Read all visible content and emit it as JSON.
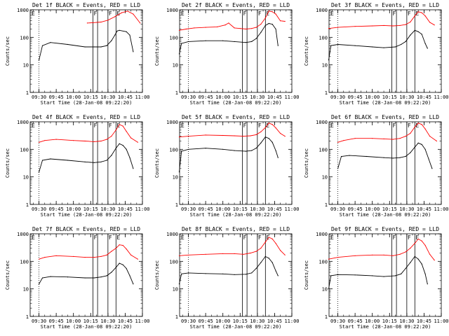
{
  "chart_data": [
    {
      "type": "line",
      "title": "Det 1f BLACK = Events, RED = LLD",
      "xlabel": "Start Time (28-Jan-08 09:22:20)",
      "ylabel": "Counts/sec",
      "yscale": "log",
      "ylim": [
        1,
        1000
      ],
      "y_ticks": [
        "1",
        "10",
        "100",
        "1000"
      ],
      "x_ticks": [
        "09:30",
        "09:45",
        "10:00",
        "10:15",
        "10:30",
        "10:45",
        "11:00"
      ],
      "xlim": [
        "09:22:20",
        "11:00"
      ],
      "flag_labels": [
        "E",
        "F",
        "F",
        "E"
      ],
      "series": [
        {
          "color": "#ff0000",
          "x": [
            "10:12",
            "10:17",
            "10:24",
            "10:30",
            "10:36",
            "10:42",
            "10:47",
            "10:52",
            "10:58"
          ],
          "y": [
            330,
            340,
            360,
            420,
            560,
            780,
            900,
            700,
            330
          ]
        },
        {
          "color": "#000000",
          "x": [
            "09:30",
            "09:33",
            "09:40",
            "09:55",
            "10:10",
            "10:18",
            "10:24",
            "10:29",
            "10:33",
            "10:36",
            "10:38",
            "10:40",
            "10:46",
            "10:49",
            "10:52"
          ],
          "y": [
            15,
            50,
            65,
            55,
            45,
            45,
            45,
            50,
            75,
            120,
            170,
            180,
            160,
            120,
            30
          ]
        }
      ]
    },
    {
      "type": "line",
      "title": "Det 2f BLACK = Events, RED = LLD",
      "xlabel": "Start Time (28-Jan-08 09:22:20)",
      "ylabel": "Counts/sec",
      "yscale": "log",
      "ylim": [
        1,
        1000
      ],
      "y_ticks": [
        "1",
        "10",
        "100",
        "1000"
      ],
      "x_ticks": [
        "09:30",
        "09:45",
        "10:00",
        "10:15",
        "10:30",
        "10:45",
        "11:00"
      ],
      "xlim": [
        "09:22:20",
        "11:00"
      ],
      "flag_labels": [
        "E",
        "F",
        "F",
        "E"
      ],
      "series": [
        {
          "color": "#ff0000",
          "x": [
            "09:22",
            "09:28",
            "09:35",
            "09:45",
            "09:55",
            "10:02",
            "10:05",
            "10:10",
            "10:15",
            "10:20",
            "10:25",
            "10:29",
            "10:33",
            "10:37",
            "10:40",
            "10:43",
            "10:46",
            "10:50",
            "10:54"
          ],
          "y": [
            180,
            200,
            220,
            230,
            240,
            280,
            330,
            220,
            210,
            200,
            210,
            230,
            300,
            500,
            900,
            850,
            700,
            400,
            380
          ]
        },
        {
          "color": "#000000",
          "x": [
            "09:22",
            "09:24",
            "09:30",
            "09:45",
            "10:00",
            "10:10",
            "10:20",
            "10:25",
            "10:29",
            "10:33",
            "10:37",
            "10:40",
            "10:43",
            "10:46",
            "10:48"
          ],
          "y": [
            25,
            60,
            70,
            75,
            75,
            70,
            65,
            70,
            90,
            150,
            270,
            320,
            300,
            200,
            50
          ]
        }
      ]
    },
    {
      "type": "line",
      "title": "Det 3f BLACK = Events, RED = LLD",
      "xlabel": "Start Time (28-Jan-08 09:22:20)",
      "ylabel": "Counts/sec",
      "yscale": "log",
      "ylim": [
        1,
        1000
      ],
      "y_ticks": [
        "1",
        "10",
        "100",
        "1000"
      ],
      "x_ticks": [
        "09:30",
        "09:45",
        "10:00",
        "10:15",
        "10:30",
        "10:45",
        "11:00"
      ],
      "xlim": [
        "09:22:20",
        "11:00"
      ],
      "flag_labels": [
        "E",
        "F",
        "F",
        "E"
      ],
      "series": [
        {
          "color": "#ff0000",
          "x": [
            "09:22",
            "09:30",
            "09:45",
            "10:00",
            "10:10",
            "10:18",
            "10:24",
            "10:29",
            "10:33",
            "10:37",
            "10:40",
            "10:43",
            "10:46",
            "10:50",
            "10:54"
          ],
          "y": [
            210,
            230,
            250,
            260,
            270,
            260,
            270,
            290,
            360,
            600,
            850,
            780,
            600,
            350,
            280
          ]
        },
        {
          "color": "#000000",
          "x": [
            "09:22",
            "09:24",
            "09:30",
            "09:45",
            "10:00",
            "10:10",
            "10:20",
            "10:25",
            "10:29",
            "10:33",
            "10:37",
            "10:40",
            "10:43",
            "10:46",
            "10:48"
          ],
          "y": [
            15,
            50,
            55,
            50,
            45,
            42,
            45,
            55,
            70,
            120,
            180,
            160,
            130,
            60,
            40
          ]
        }
      ]
    },
    {
      "type": "line",
      "title": "Det 4f BLACK = Events, RED = LLD",
      "xlabel": "Start Time (28-Jan-08 09:22:20)",
      "ylabel": "Counts/sec",
      "yscale": "log",
      "ylim": [
        1,
        1000
      ],
      "y_ticks": [
        "1",
        "10",
        "100",
        "1000"
      ],
      "x_ticks": [
        "09:30",
        "09:45",
        "10:00",
        "10:15",
        "10:30",
        "10:45",
        "11:00"
      ],
      "xlim": [
        "09:22:20",
        "11:00"
      ],
      "flag_labels": [
        "E",
        "F",
        "F",
        "E"
      ],
      "series": [
        {
          "color": "#ff0000",
          "x": [
            "09:30",
            "09:35",
            "09:45",
            "10:00",
            "10:10",
            "10:18",
            "10:24",
            "10:29",
            "10:33",
            "10:37",
            "10:40",
            "10:43",
            "10:46",
            "10:50",
            "10:56"
          ],
          "y": [
            180,
            210,
            230,
            210,
            200,
            190,
            200,
            230,
            300,
            500,
            800,
            700,
            450,
            260,
            180
          ]
        },
        {
          "color": "#000000",
          "x": [
            "09:30",
            "09:33",
            "09:40",
            "09:55",
            "10:10",
            "10:18",
            "10:24",
            "10:29",
            "10:33",
            "10:37",
            "10:40",
            "10:43",
            "10:46",
            "10:49",
            "10:52"
          ],
          "y": [
            15,
            40,
            45,
            40,
            35,
            33,
            35,
            40,
            60,
            110,
            160,
            140,
            100,
            50,
            20
          ]
        }
      ]
    },
    {
      "type": "line",
      "title": "Det 5f BLACK = Events, RED = LLD",
      "xlabel": "Start Time (28-Jan-08 09:22:20)",
      "ylabel": "Counts/sec",
      "yscale": "log",
      "ylim": [
        1,
        1000
      ],
      "y_ticks": [
        "1",
        "10",
        "100",
        "1000"
      ],
      "x_ticks": [
        "09:30",
        "09:45",
        "10:00",
        "10:15",
        "10:30",
        "10:45",
        "11:00"
      ],
      "xlim": [
        "09:22:20",
        "11:00"
      ],
      "flag_labels": [
        "E",
        "F",
        "F",
        "E"
      ],
      "series": [
        {
          "color": "#ff0000",
          "x": [
            "09:22",
            "09:30",
            "09:45",
            "10:00",
            "10:10",
            "10:18",
            "10:24",
            "10:29",
            "10:33",
            "10:37",
            "10:40",
            "10:43",
            "10:46",
            "10:50",
            "10:54"
          ],
          "y": [
            280,
            300,
            330,
            320,
            310,
            300,
            310,
            340,
            430,
            620,
            900,
            800,
            600,
            380,
            300
          ]
        },
        {
          "color": "#000000",
          "x": [
            "09:22",
            "09:24",
            "09:30",
            "09:45",
            "10:00",
            "10:10",
            "10:20",
            "10:25",
            "10:29",
            "10:33",
            "10:37",
            "10:40",
            "10:43",
            "10:46",
            "10:48"
          ],
          "y": [
            15,
            85,
            100,
            110,
            100,
            90,
            85,
            90,
            110,
            170,
            280,
            250,
            180,
            90,
            50
          ]
        }
      ]
    },
    {
      "type": "line",
      "title": "Det 6f BLACK = Events, RED = LLD",
      "xlabel": "Start Time (28-Jan-08 09:22:20)",
      "ylabel": "Counts/sec",
      "yscale": "log",
      "ylim": [
        1,
        1000
      ],
      "y_ticks": [
        "1",
        "10",
        "100",
        "1000"
      ],
      "x_ticks": [
        "09:30",
        "09:45",
        "10:00",
        "10:15",
        "10:30",
        "10:45",
        "11:00"
      ],
      "xlim": [
        "09:22:20",
        "11:00"
      ],
      "flag_labels": [
        "E",
        "F",
        "F",
        "E"
      ],
      "series": [
        {
          "color": "#ff0000",
          "x": [
            "09:30",
            "09:35",
            "09:45",
            "10:00",
            "10:10",
            "10:18",
            "10:24",
            "10:29",
            "10:33",
            "10:37",
            "10:40",
            "10:43",
            "10:46",
            "10:50",
            "10:56"
          ],
          "y": [
            180,
            210,
            250,
            250,
            240,
            230,
            250,
            300,
            380,
            650,
            900,
            800,
            550,
            300,
            200
          ]
        },
        {
          "color": "#000000",
          "x": [
            "09:30",
            "09:33",
            "09:40",
            "09:55",
            "10:10",
            "10:18",
            "10:24",
            "10:29",
            "10:33",
            "10:37",
            "10:40",
            "10:43",
            "10:46",
            "10:49",
            "10:52"
          ],
          "y": [
            20,
            55,
            60,
            55,
            50,
            48,
            50,
            55,
            75,
            120,
            170,
            150,
            100,
            45,
            20
          ]
        }
      ]
    },
    {
      "type": "line",
      "title": "Det 7f BLACK = Events, RED = LLD",
      "xlabel": "Start Time (28-Jan-08 09:22:20)",
      "ylabel": "Counts/sec",
      "yscale": "log",
      "ylim": [
        1,
        1000
      ],
      "y_ticks": [
        "1",
        "10",
        "100",
        "1000"
      ],
      "x_ticks": [
        "09:30",
        "09:45",
        "10:00",
        "10:15",
        "10:30",
        "10:45",
        "11:00"
      ],
      "xlim": [
        "09:22:20",
        "11:00"
      ],
      "flag_labels": [
        "E",
        "F",
        "F",
        "E"
      ],
      "series": [
        {
          "color": "#ff0000",
          "x": [
            "09:30",
            "09:35",
            "09:45",
            "10:00",
            "10:10",
            "10:18",
            "10:24",
            "10:29",
            "10:33",
            "10:37",
            "10:40",
            "10:43",
            "10:46",
            "10:50",
            "10:56"
          ],
          "y": [
            120,
            140,
            160,
            150,
            140,
            140,
            150,
            170,
            230,
            300,
            400,
            380,
            280,
            170,
            120
          ]
        },
        {
          "color": "#000000",
          "x": [
            "09:30",
            "09:33",
            "09:40",
            "09:55",
            "10:10",
            "10:18",
            "10:24",
            "10:29",
            "10:33",
            "10:37",
            "10:40",
            "10:43",
            "10:46",
            "10:49",
            "10:52"
          ],
          "y": [
            15,
            25,
            28,
            27,
            25,
            25,
            27,
            30,
            40,
            60,
            85,
            75,
            55,
            30,
            15
          ]
        }
      ]
    },
    {
      "type": "line",
      "title": "Det 8f BLACK = Events, RED = LLD",
      "xlabel": "Start Time (28-Jan-08 09:22:20)",
      "ylabel": "Counts/sec",
      "yscale": "log",
      "ylim": [
        1,
        1000
      ],
      "y_ticks": [
        "1",
        "10",
        "100",
        "1000"
      ],
      "x_ticks": [
        "09:30",
        "09:45",
        "10:00",
        "10:15",
        "10:30",
        "10:45",
        "11:00"
      ],
      "xlim": [
        "09:22:20",
        "11:00"
      ],
      "flag_labels": [
        "E",
        "F",
        "F",
        "E"
      ],
      "series": [
        {
          "color": "#ff0000",
          "x": [
            "09:22",
            "09:30",
            "09:45",
            "10:00",
            "10:10",
            "10:18",
            "10:24",
            "10:29",
            "10:33",
            "10:37",
            "10:40",
            "10:43",
            "10:46",
            "10:50",
            "10:54"
          ],
          "y": [
            160,
            170,
            180,
            190,
            190,
            180,
            200,
            230,
            300,
            500,
            750,
            650,
            450,
            250,
            170
          ]
        },
        {
          "color": "#000000",
          "x": [
            "09:22",
            "09:24",
            "09:30",
            "09:45",
            "10:00",
            "10:10",
            "10:20",
            "10:25",
            "10:29",
            "10:33",
            "10:37",
            "10:40",
            "10:43",
            "10:46",
            "10:48"
          ],
          "y": [
            15,
            35,
            38,
            36,
            35,
            33,
            34,
            38,
            55,
            90,
            150,
            130,
            90,
            45,
            30
          ]
        }
      ]
    },
    {
      "type": "line",
      "title": "Det 9f BLACK = Events, RED = LLD",
      "xlabel": "Start Time (28-Jan-08 09:22:20)",
      "ylabel": "Counts/sec",
      "yscale": "log",
      "ylim": [
        1,
        1000
      ],
      "y_ticks": [
        "1",
        "10",
        "100",
        "1000"
      ],
      "x_ticks": [
        "09:30",
        "09:45",
        "10:00",
        "10:15",
        "10:30",
        "10:45",
        "11:00"
      ],
      "xlim": [
        "09:22:20",
        "11:00"
      ],
      "flag_labels": [
        "E",
        "F",
        "F",
        "E"
      ],
      "series": [
        {
          "color": "#ff0000",
          "x": [
            "09:22",
            "09:30",
            "09:45",
            "10:00",
            "10:10",
            "10:18",
            "10:24",
            "10:29",
            "10:33",
            "10:37",
            "10:40",
            "10:43",
            "10:46",
            "10:50",
            "10:54"
          ],
          "y": [
            120,
            140,
            160,
            170,
            170,
            160,
            180,
            220,
            300,
            450,
            650,
            550,
            380,
            180,
            110
          ]
        },
        {
          "color": "#000000",
          "x": [
            "09:22",
            "09:24",
            "09:30",
            "09:45",
            "10:00",
            "10:10",
            "10:20",
            "10:25",
            "10:29",
            "10:33",
            "10:37",
            "10:40",
            "10:43",
            "10:46",
            "10:48"
          ],
          "y": [
            10,
            30,
            33,
            32,
            30,
            28,
            30,
            35,
            55,
            90,
            150,
            120,
            80,
            35,
            15
          ]
        }
      ]
    }
  ],
  "markers": {
    "dotted_time": "09:30",
    "flag_times": [
      "10:17",
      "10:21",
      "10:30",
      "10:37"
    ]
  }
}
